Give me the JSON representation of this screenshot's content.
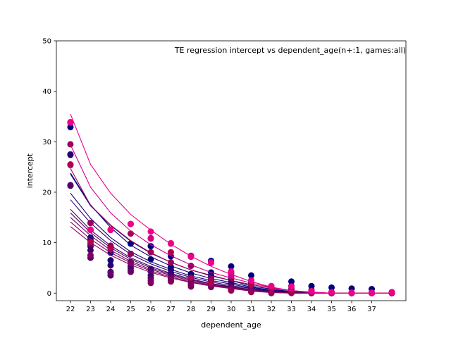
{
  "chart_data": {
    "type": "scatter",
    "title": "TE regression intercept vs dependent_age(n+:1, games:all)",
    "xlabel": "dependent_age",
    "ylabel": "intercept",
    "xlim": [
      21.3,
      38.7
    ],
    "ylim": [
      -1.5,
      50
    ],
    "x_ticks": [
      22,
      23,
      24,
      25,
      26,
      27,
      28,
      29,
      30,
      31,
      32,
      33,
      34,
      35,
      36,
      37
    ],
    "y_ticks": [
      0,
      10,
      20,
      30,
      40,
      50
    ],
    "grid": false,
    "legend": "none",
    "x": [
      22,
      23,
      24,
      25,
      26,
      27,
      28,
      29,
      30,
      31,
      32,
      33,
      34,
      35,
      36,
      37,
      38
    ],
    "series": [
      {
        "color": "#000080",
        "points": [
          32.9,
          12.5,
          9.0,
          9.8,
          9.3,
          7.3,
          7.4,
          6.4,
          5.3,
          3.5,
          1.1,
          2.3,
          1.4,
          1.1,
          0.9,
          0.8,
          0.2
        ],
        "curve": [
          23.6,
          17.3,
          13.4,
          10.3,
          7.9,
          6.1,
          4.6,
          3.5,
          2.5,
          1.4,
          0.8,
          0.3,
          0.1,
          0.0,
          0.0,
          0.0,
          0.0
        ]
      },
      {
        "color": "#0a007c",
        "points": [
          27.4,
          11.0,
          8.0,
          7.8,
          6.7,
          5.2,
          3.8,
          4.1,
          4.0,
          2.0,
          0.6,
          1.4,
          0.6,
          0.2,
          0.0,
          0.0,
          0.0
        ],
        "curve": [
          23.8,
          17.5,
          13.0,
          9.5,
          7.2,
          5.4,
          4.0,
          2.9,
          2.1,
          1.2,
          0.6,
          0.3,
          0.1,
          0.0,
          0.0,
          0.0,
          0.0
        ]
      },
      {
        "color": "#1a0078",
        "points": [
          21.3,
          9.3,
          6.5,
          6.2,
          4.8,
          4.6,
          3.2,
          3.5,
          2.9,
          1.5,
          0.4,
          0.8,
          0.3,
          0.1,
          0.0,
          0.0,
          0.0
        ],
        "curve": [
          19.8,
          14.8,
          11.0,
          8.2,
          6.2,
          4.7,
          3.4,
          2.5,
          1.8,
          1.0,
          0.5,
          0.2,
          0.0,
          0.0,
          0.0,
          0.0,
          0.0
        ]
      },
      {
        "color": "#2c0074",
        "points": [
          27.5,
          10.5,
          5.5,
          5.4,
          4.3,
          3.9,
          2.8,
          3.0,
          2.2,
          1.1,
          0.3,
          0.6,
          0.2,
          0.0,
          0.0,
          0.0,
          0.0
        ],
        "curve": [
          18.5,
          13.9,
          10.4,
          7.7,
          5.8,
          4.3,
          3.1,
          2.2,
          1.5,
          0.9,
          0.4,
          0.1,
          0.0,
          0.0,
          0.0,
          0.0,
          0.0
        ]
      },
      {
        "color": "#40006f",
        "points": [
          21.4,
          8.5,
          4.2,
          5.0,
          3.5,
          3.4,
          2.5,
          2.5,
          1.8,
          0.9,
          0.2,
          0.4,
          0.1,
          0.0,
          0.0,
          0.0,
          0.0
        ],
        "curve": [
          16.6,
          12.5,
          9.4,
          7.0,
          5.3,
          3.9,
          2.8,
          1.9,
          1.3,
          0.7,
          0.3,
          0.1,
          0.0,
          0.0,
          0.0,
          0.0,
          0.0
        ]
      },
      {
        "color": "#55006b",
        "points": [
          21.3,
          7.0,
          3.5,
          4.5,
          3.0,
          2.9,
          2.0,
          2.0,
          1.3,
          0.6,
          0.1,
          0.3,
          0.0,
          0.0,
          0.0,
          0.0,
          0.0
        ],
        "curve": [
          15.9,
          12.0,
          9.0,
          6.7,
          5.0,
          3.7,
          2.6,
          1.8,
          1.2,
          0.6,
          0.2,
          0.1,
          0.0,
          0.0,
          0.0,
          0.0,
          0.0
        ]
      },
      {
        "color": "#6a0066",
        "points": [
          25.4,
          9.7,
          4.0,
          4.2,
          2.5,
          2.5,
          1.6,
          1.6,
          1.0,
          0.5,
          0.1,
          0.2,
          0.0,
          0.0,
          0.0,
          0.0,
          0.0
        ],
        "curve": [
          15.0,
          11.4,
          8.5,
          6.3,
          4.7,
          3.5,
          2.4,
          1.6,
          1.1,
          0.6,
          0.2,
          0.0,
          0.0,
          0.0,
          0.0,
          0.0,
          0.0
        ]
      },
      {
        "color": "#800060",
        "points": [
          33.8,
          7.5,
          9.2,
          6.0,
          2.0,
          2.3,
          1.3,
          1.2,
          0.7,
          0.3,
          0.0,
          0.1,
          0.0,
          0.0,
          0.0,
          0.0,
          0.0
        ],
        "curve": [
          14.1,
          10.7,
          8.0,
          6.0,
          4.4,
          3.2,
          2.2,
          1.5,
          1.0,
          0.5,
          0.2,
          0.0,
          0.0,
          0.0,
          0.0,
          0.0,
          0.0
        ]
      },
      {
        "color": "#96005a",
        "points": [
          29.5,
          13.9,
          9.4,
          7.8,
          8.1,
          6.1,
          5.4,
          2.7,
          0.5,
          0.2,
          0.0,
          0.0,
          0.0,
          0.0,
          0.0,
          0.0,
          0.0
        ],
        "curve": [
          13.2,
          10.0,
          7.5,
          5.6,
          4.1,
          3.0,
          2.1,
          1.4,
          0.9,
          0.4,
          0.1,
          0.0,
          0.0,
          0.0,
          0.0,
          0.0,
          0.0
        ]
      },
      {
        "color": "#b00050",
        "points": [
          25.5,
          10.1,
          8.7,
          11.8,
          10.9,
          8.1,
          3.0,
          2.0,
          3.3,
          1.6,
          0.8,
          0.6,
          0.2,
          0.1,
          0.1,
          0.0,
          0.0
        ],
        "curve": [
          24.7,
          17.4,
          13.5,
          10.4,
          8.0,
          6.1,
          4.6,
          3.4,
          2.5,
          1.7,
          1.0,
          0.5,
          0.2,
          0.0,
          0.0,
          0.0,
          0.0
        ]
      },
      {
        "color": "#d00088",
        "points": [
          33.8,
          12.5,
          12.5,
          13.7,
          10.8,
          9.8,
          7.2,
          6.0,
          3.5,
          2.5,
          1.4,
          1.3,
          0.3,
          0.1,
          0.0,
          0.0,
          0.1
        ],
        "curve": [
          29.4,
          21.0,
          15.9,
          12.3,
          9.6,
          7.4,
          5.6,
          4.1,
          3.0,
          2.0,
          1.1,
          0.5,
          0.2,
          0.0,
          0.0,
          0.0,
          0.0
        ]
      },
      {
        "color": "#ee0088",
        "points": [
          33.9,
          12.6,
          12.6,
          13.7,
          12.2,
          9.9,
          7.3,
          6.1,
          4.3,
          2.5,
          1.4,
          1.3,
          0.4,
          0.2,
          0.1,
          0.1,
          0.2
        ],
        "curve": [
          35.5,
          25.5,
          19.8,
          15.6,
          12.5,
          9.7,
          7.3,
          5.3,
          3.7,
          2.3,
          1.2,
          0.5,
          0.1,
          0.0,
          0.0,
          0.0,
          0.0
        ]
      }
    ]
  }
}
